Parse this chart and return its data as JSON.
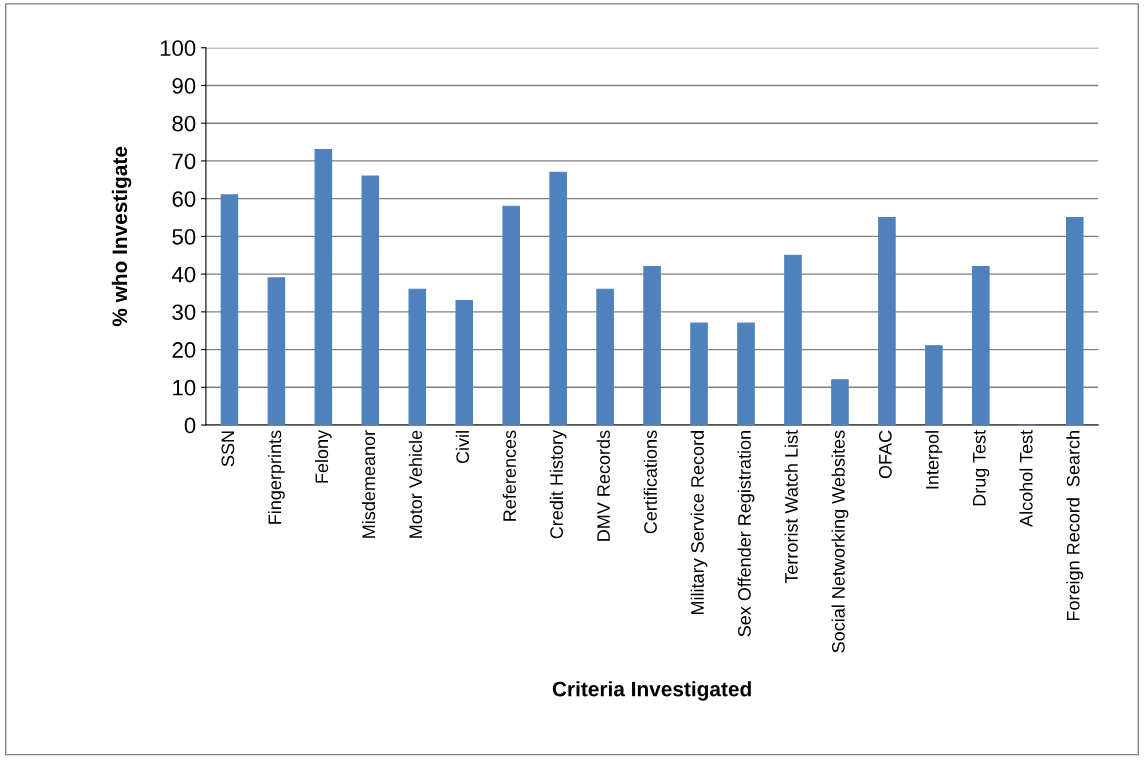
{
  "chart_data": {
    "type": "bar",
    "xlabel": "Criteria Investigated",
    "ylabel": "% who Investigate",
    "categories": [
      "SSN",
      "Fingerprints",
      "Felony",
      "Misdemeanor",
      "Motor Vehicle",
      "Civil",
      "References",
      "Credit History",
      "DMV Records",
      "Certifications",
      "Military Service Record",
      "Sex Offender Registration",
      "Terrorist Watch List",
      "Social Networking Websites",
      "OFAC",
      "Interpol",
      "Drug Test",
      "Alcohol Test",
      "Foreign Record  Search"
    ],
    "values": [
      61,
      39,
      73,
      66,
      36,
      33,
      58,
      67,
      36,
      42,
      27,
      27,
      45,
      12,
      55,
      21,
      42,
      0,
      55
    ],
    "color": "#4f81bd",
    "ylim": [
      0,
      100
    ],
    "yticks": [
      0,
      10,
      20,
      30,
      40,
      50,
      60,
      70,
      80,
      90,
      100
    ],
    "grid": "y"
  }
}
